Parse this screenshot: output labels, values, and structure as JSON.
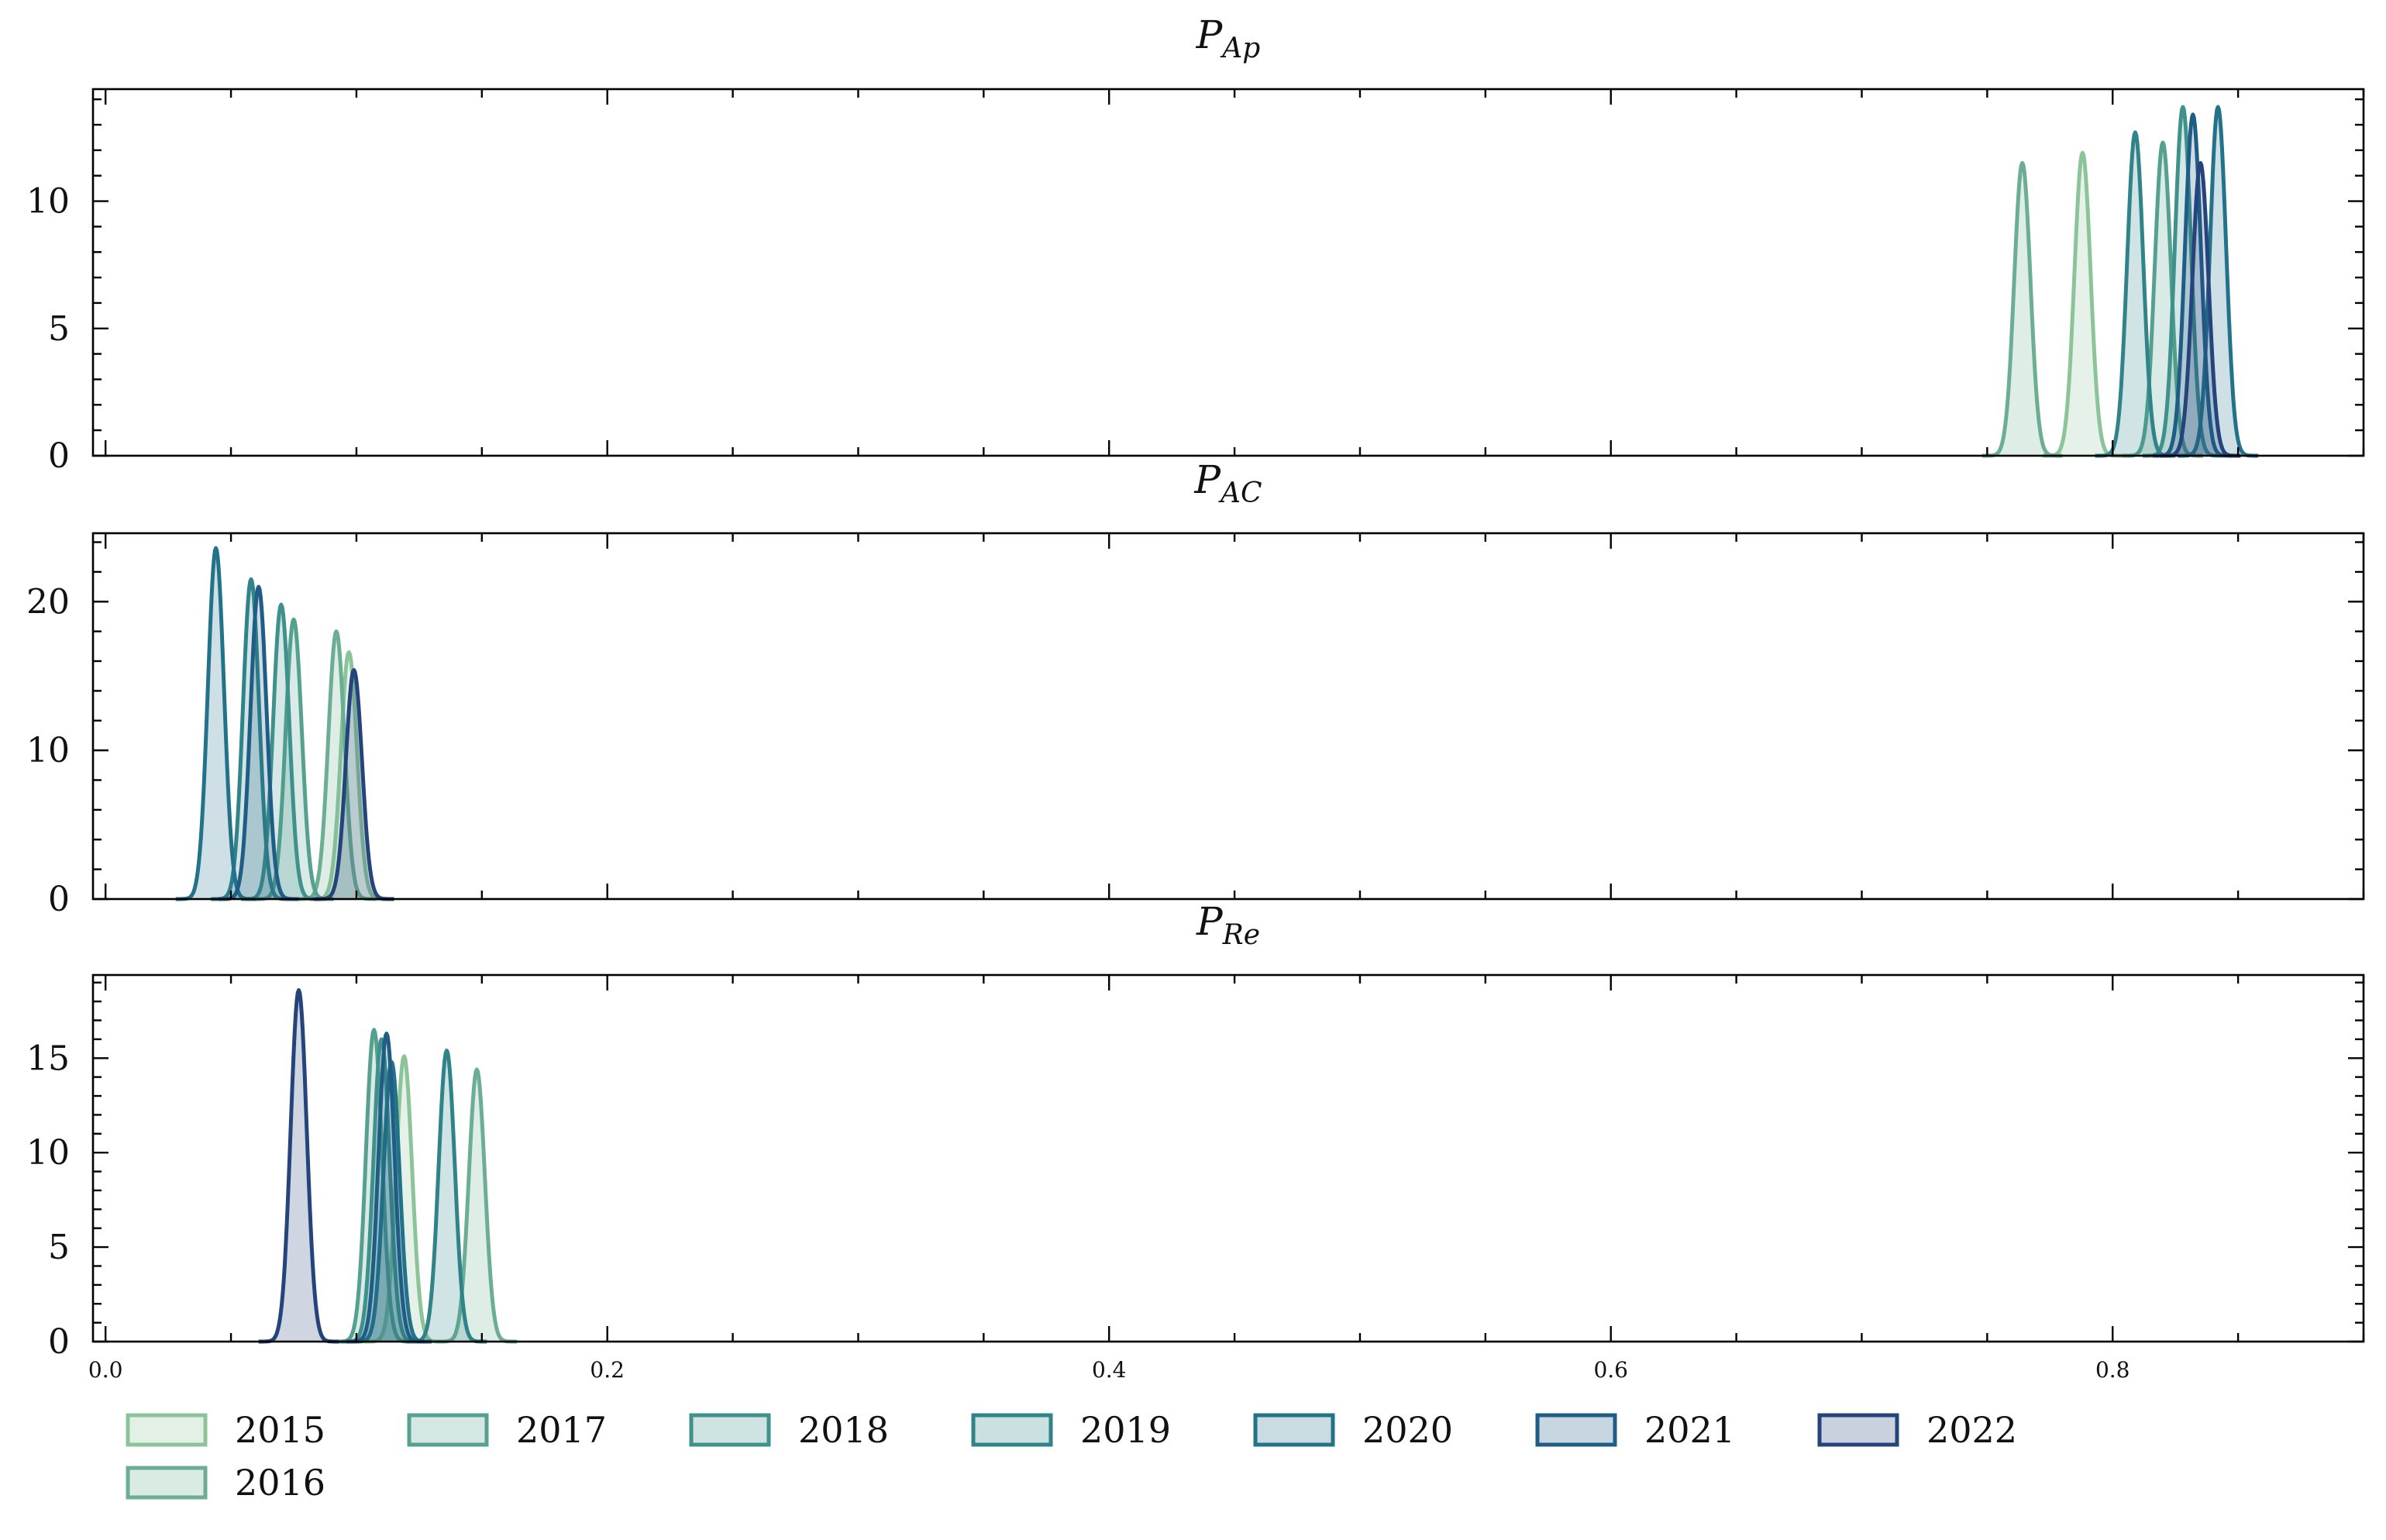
{
  "chart_data": [
    {
      "type": "area",
      "title_main": "P",
      "title_sub": "Ap",
      "xlim": [
        -0.005,
        0.9
      ],
      "ylim": [
        0,
        14.4
      ],
      "yticks": [
        0,
        5,
        10
      ],
      "series": [
        {
          "name": "2015",
          "color": "#8cc49a",
          "peak_x": 0.788,
          "peak_y": 11.9
        },
        {
          "name": "2016",
          "color": "#6cae93",
          "peak_x": 0.764,
          "peak_y": 11.5
        },
        {
          "name": "2017",
          "color": "#55a08f",
          "peak_x": 0.82,
          "peak_y": 12.3
        },
        {
          "name": "2018",
          "color": "#3f918b",
          "peak_x": 0.828,
          "peak_y": 13.7
        },
        {
          "name": "2019",
          "color": "#2f8389",
          "peak_x": 0.809,
          "peak_y": 12.7
        },
        {
          "name": "2020",
          "color": "#22738a",
          "peak_x": 0.842,
          "peak_y": 13.7
        },
        {
          "name": "2021",
          "color": "#1f5d86",
          "peak_x": 0.832,
          "peak_y": 13.4
        },
        {
          "name": "2022",
          "color": "#26447c",
          "peak_x": 0.835,
          "peak_y": 11.5
        }
      ]
    },
    {
      "type": "area",
      "title_main": "P",
      "title_sub": "AC",
      "xlim": [
        -0.005,
        0.9
      ],
      "ylim": [
        0,
        24.6
      ],
      "yticks": [
        0,
        10,
        20
      ],
      "series": [
        {
          "name": "2015",
          "color": "#8cc49a",
          "peak_x": 0.097,
          "peak_y": 16.6
        },
        {
          "name": "2016",
          "color": "#6cae93",
          "peak_x": 0.092,
          "peak_y": 18.0
        },
        {
          "name": "2017",
          "color": "#55a08f",
          "peak_x": 0.075,
          "peak_y": 18.8
        },
        {
          "name": "2018",
          "color": "#3f918b",
          "peak_x": 0.07,
          "peak_y": 19.8
        },
        {
          "name": "2019",
          "color": "#2f8389",
          "peak_x": 0.058,
          "peak_y": 21.5
        },
        {
          "name": "2020",
          "color": "#22738a",
          "peak_x": 0.044,
          "peak_y": 23.6
        },
        {
          "name": "2021",
          "color": "#1f5d86",
          "peak_x": 0.061,
          "peak_y": 21.0
        },
        {
          "name": "2022",
          "color": "#26447c",
          "peak_x": 0.099,
          "peak_y": 15.4
        }
      ]
    },
    {
      "type": "area",
      "title_main": "P",
      "title_sub": "Re",
      "xlim": [
        -0.005,
        0.9
      ],
      "ylim": [
        0,
        19.4
      ],
      "yticks": [
        0,
        5,
        10,
        15
      ],
      "series": [
        {
          "name": "2015",
          "color": "#8cc49a",
          "peak_x": 0.119,
          "peak_y": 15.1
        },
        {
          "name": "2016",
          "color": "#6cae93",
          "peak_x": 0.148,
          "peak_y": 14.4
        },
        {
          "name": "2017",
          "color": "#55a08f",
          "peak_x": 0.107,
          "peak_y": 16.5
        },
        {
          "name": "2018",
          "color": "#3f918b",
          "peak_x": 0.11,
          "peak_y": 16.0
        },
        {
          "name": "2019",
          "color": "#2f8389",
          "peak_x": 0.136,
          "peak_y": 15.4
        },
        {
          "name": "2020",
          "color": "#22738a",
          "peak_x": 0.114,
          "peak_y": 14.8
        },
        {
          "name": "2021",
          "color": "#1f5d86",
          "peak_x": 0.112,
          "peak_y": 16.3
        },
        {
          "name": "2022",
          "color": "#26447c",
          "peak_x": 0.077,
          "peak_y": 18.6
        }
      ]
    }
  ],
  "x_axis": {
    "ticks": [
      0.0,
      0.2,
      0.4,
      0.6,
      0.8
    ],
    "tick_labels": [
      "0.0",
      "0.2",
      "0.4",
      "0.6",
      "0.8"
    ]
  },
  "legend": {
    "placement": "bottom",
    "entries": [
      {
        "label": "2015",
        "color": "#8cc49a"
      },
      {
        "label": "2017",
        "color": "#55a08f"
      },
      {
        "label": "2018",
        "color": "#3f918b"
      },
      {
        "label": "2019",
        "color": "#2f8389"
      },
      {
        "label": "2020",
        "color": "#22738a"
      },
      {
        "label": "2021",
        "color": "#1f5d86"
      },
      {
        "label": "2022",
        "color": "#26447c"
      },
      {
        "label": "2016",
        "color": "#6cae93"
      }
    ]
  }
}
